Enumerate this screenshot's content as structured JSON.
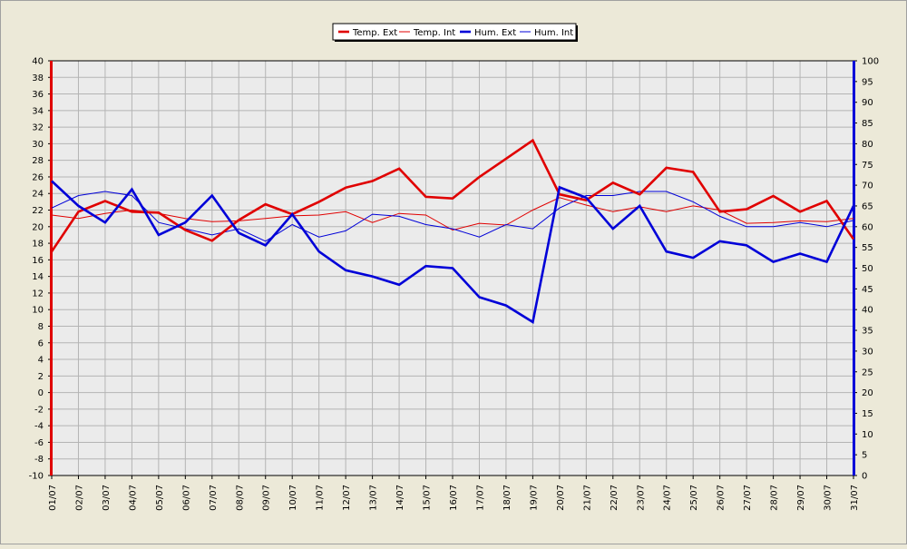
{
  "chart_data": {
    "type": "line",
    "legend_position": "top-center",
    "grid": true,
    "categories": [
      "01/07",
      "02/07",
      "03/07",
      "04/07",
      "05/07",
      "06/07",
      "07/07",
      "08/07",
      "09/07",
      "10/07",
      "11/07",
      "12/07",
      "13/07",
      "14/07",
      "15/07",
      "16/07",
      "17/07",
      "18/07",
      "19/07",
      "20/07",
      "21/07",
      "22/07",
      "23/07",
      "24/07",
      "25/07",
      "26/07",
      "27/07",
      "28/07",
      "29/07",
      "30/07",
      "31/07"
    ],
    "y_left": {
      "range": [
        -10,
        40
      ],
      "step": 2
    },
    "y_right": {
      "range": [
        0,
        100
      ],
      "step": 5
    },
    "series": [
      {
        "name": "Temp. Ext",
        "axis": "left",
        "color": "#e00000",
        "weight": "thick",
        "values": [
          17.0,
          21.8,
          23.1,
          21.8,
          21.7,
          19.6,
          18.3,
          20.8,
          22.7,
          21.5,
          23.0,
          24.7,
          25.5,
          27.0,
          23.6,
          23.4,
          26.0,
          28.2,
          30.4,
          23.9,
          23.2,
          25.3,
          23.9,
          27.1,
          26.6,
          21.8,
          22.1,
          23.7,
          21.8,
          23.1,
          18.5
        ]
      },
      {
        "name": "Temp. Int",
        "axis": "left",
        "color": "#e00000",
        "weight": "thin",
        "values": [
          21.4,
          21.0,
          21.6,
          22.0,
          21.6,
          21.0,
          20.6,
          20.7,
          21.0,
          21.3,
          21.4,
          21.8,
          20.5,
          21.6,
          21.4,
          19.6,
          20.4,
          20.2,
          22.0,
          23.5,
          22.6,
          21.8,
          22.4,
          21.8,
          22.5,
          22.0,
          20.4,
          20.5,
          20.7,
          20.6,
          21.0
        ]
      },
      {
        "name": "Hum. Ext",
        "axis": "right",
        "color": "#0000d8",
        "weight": "thick",
        "values": [
          71.0,
          65.0,
          61.0,
          69.0,
          58.0,
          61.0,
          67.5,
          58.5,
          55.5,
          63.0,
          54.0,
          49.5,
          48.0,
          46.0,
          50.5,
          50.0,
          43.0,
          41.0,
          37.0,
          69.5,
          67.0,
          59.5,
          65.0,
          54.0,
          52.5,
          56.5,
          55.5,
          51.5,
          53.5,
          51.5,
          65.0
        ]
      },
      {
        "name": "Hum. Int",
        "axis": "right",
        "color": "#0000d8",
        "weight": "thin",
        "values": [
          64.5,
          67.5,
          68.5,
          67.5,
          61.0,
          59.5,
          58.0,
          59.5,
          56.5,
          60.5,
          57.5,
          59.0,
          63.0,
          62.5,
          60.5,
          59.5,
          57.5,
          60.5,
          59.5,
          64.5,
          67.5,
          67.5,
          68.5,
          68.5,
          66.0,
          62.5,
          60.0,
          60.0,
          61.0,
          60.0,
          61.5
        ]
      }
    ]
  }
}
